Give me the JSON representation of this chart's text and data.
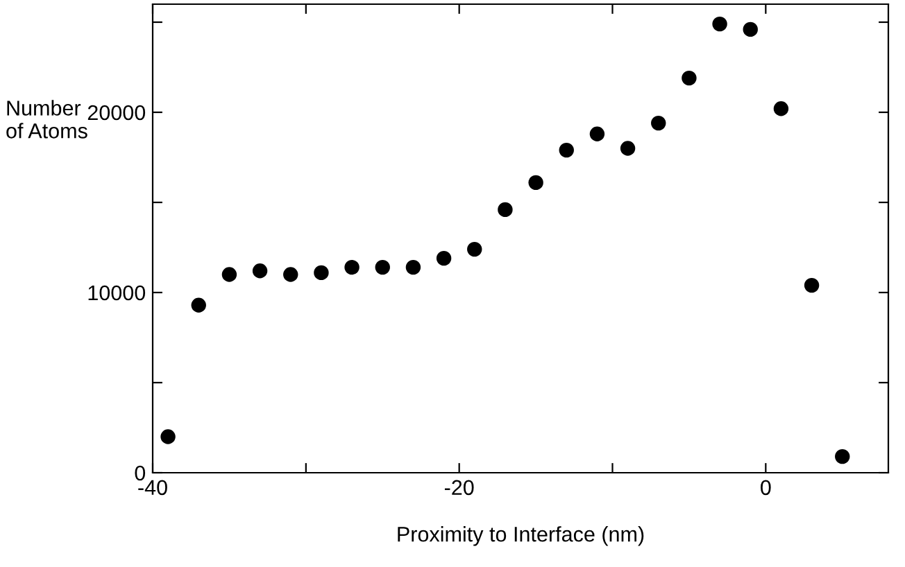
{
  "chart_data": {
    "type": "scatter",
    "xlabel": "Proximity to Interface (nm)",
    "ylabel": "Number\nof Atoms",
    "x": [
      -39,
      -37,
      -35,
      -33,
      -31,
      -29,
      -27,
      -25,
      -23,
      -21,
      -19,
      -17,
      -15,
      -13,
      -11,
      -9,
      -7,
      -5,
      -3,
      -1,
      1,
      3,
      5
    ],
    "series": [
      {
        "color": "#000000",
        "values": [
          2000,
          9300,
          11000,
          11200,
          11000,
          11100,
          11400,
          11400,
          11400,
          11900,
          12400,
          14600,
          16100,
          17900,
          18800,
          18000,
          19400,
          21900,
          24900,
          24600,
          20200,
          10400,
          900
        ]
      }
    ],
    "xlim": [
      -40,
      8
    ],
    "ylim": [
      0,
      26000
    ],
    "xticks": [
      -40,
      {
        "value": -30,
        "label": null
      },
      -20,
      {
        "value": -10,
        "label": null
      },
      0
    ],
    "yticks": [
      0,
      {
        "value": 5000,
        "label": null
      },
      10000,
      {
        "value": 15000,
        "label": null
      },
      20000,
      {
        "value": 25000,
        "label": null
      }
    ],
    "marker": "circle",
    "grid": false,
    "legend": false
  }
}
